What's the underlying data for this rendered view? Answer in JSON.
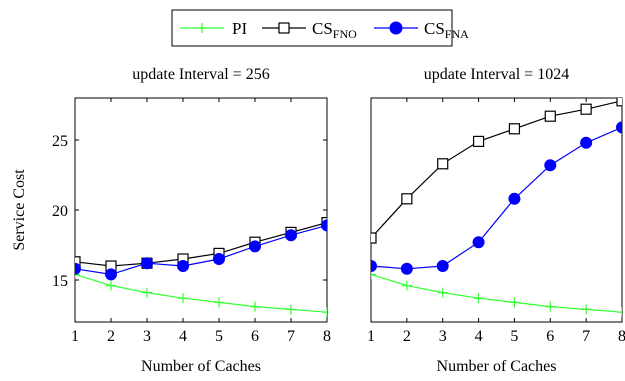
{
  "legend": [
    {
      "label": "PI",
      "sub": "",
      "color": "#33ff33",
      "marker": "plus"
    },
    {
      "label": "CS",
      "sub": "FNO",
      "color": "#000000",
      "marker": "square"
    },
    {
      "label": "CS",
      "sub": "FNA",
      "color": "#0000ff",
      "marker": "circle"
    }
  ],
  "chart_data": [
    {
      "type": "line",
      "title": "update Interval = 256",
      "xlabel": "Number of Caches",
      "ylabel": "Service Cost",
      "x": [
        1,
        2,
        3,
        4,
        5,
        6,
        7,
        8
      ],
      "xlim": [
        1,
        8
      ],
      "ylim": [
        12,
        28
      ],
      "xticks": [
        1,
        2,
        3,
        4,
        5,
        6,
        7,
        8
      ],
      "yticks": [
        15,
        20,
        25
      ],
      "series": [
        {
          "name": "PI",
          "values": [
            15.4,
            14.6,
            14.1,
            13.7,
            13.4,
            13.1,
            12.9,
            12.7
          ]
        },
        {
          "name": "CS_FNO",
          "values": [
            16.3,
            16.0,
            16.2,
            16.5,
            16.9,
            17.7,
            18.4,
            19.1
          ]
        },
        {
          "name": "CS_FNA",
          "values": [
            15.8,
            15.4,
            16.2,
            16.0,
            16.5,
            17.4,
            18.2,
            18.9
          ]
        }
      ]
    },
    {
      "type": "line",
      "title": "update Interval = 1024",
      "xlabel": "Number of Caches",
      "ylabel": "",
      "x": [
        1,
        2,
        3,
        4,
        5,
        6,
        7,
        8
      ],
      "xlim": [
        1,
        8
      ],
      "ylim": [
        12,
        28
      ],
      "xticks": [
        1,
        2,
        3,
        4,
        5,
        6,
        7,
        8
      ],
      "yticks": [],
      "series": [
        {
          "name": "PI",
          "values": [
            15.4,
            14.6,
            14.1,
            13.7,
            13.4,
            13.1,
            12.9,
            12.7
          ]
        },
        {
          "name": "CS_FNO",
          "values": [
            18.0,
            20.8,
            23.3,
            24.9,
            25.8,
            26.7,
            27.2,
            27.8
          ]
        },
        {
          "name": "CS_FNA",
          "values": [
            16.0,
            15.8,
            16.0,
            17.7,
            20.8,
            23.2,
            24.8,
            25.9
          ]
        }
      ]
    }
  ]
}
